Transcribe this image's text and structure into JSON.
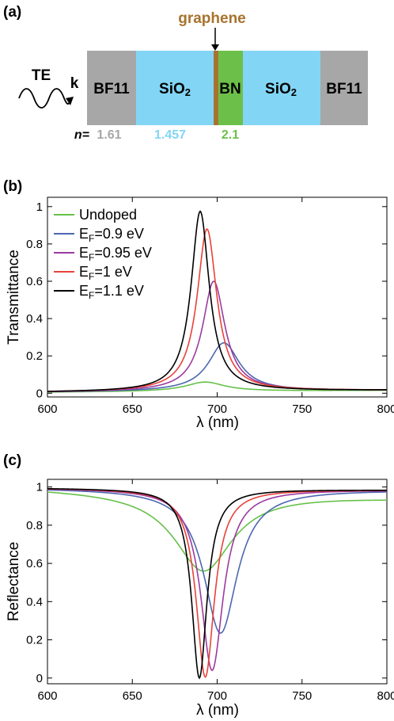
{
  "panel_a": {
    "label": "(a)",
    "graphene_label": "graphene",
    "wave_label": "TE",
    "k_label": "k",
    "n_prefix": "n=",
    "layers": [
      {
        "name": "BF11",
        "n": "1.61",
        "color": "#a6a7a6",
        "n_color": "#a6a7a6"
      },
      {
        "name": "SiO2",
        "n": "1.457",
        "color": "#82d5f5",
        "n_color": "#82d5f5"
      },
      {
        "name": "BN",
        "n": "2.1",
        "color": "#6cc04a",
        "n_color": "#6cc04a"
      },
      {
        "name": "SiO2",
        "n": "",
        "color": "#82d5f5",
        "n_color": "#82d5f5"
      },
      {
        "name": "BF11",
        "n": "",
        "color": "#a6a7a6",
        "n_color": "#a6a7a6"
      }
    ],
    "graphene_color": "#a8722e"
  },
  "chart_data": [
    {
      "panel": "(b)",
      "type": "line",
      "xlabel": "λ (nm)",
      "ylabel": "Transmittance",
      "xlim": [
        600,
        800
      ],
      "ylim": [
        -0.02,
        1.05
      ],
      "xticks": [
        600,
        650,
        700,
        750,
        800
      ],
      "yticks": [
        0,
        0.2,
        0.4,
        0.6,
        0.8,
        1
      ],
      "legend": "top-left",
      "curve_model": "lorentzian",
      "series": [
        {
          "name": "Undoped",
          "color": "#67c04a",
          "center": 693,
          "peak": 0.06,
          "width": 14,
          "baseline": 0.005,
          "baseline_right": 0.015
        },
        {
          "name": "E_F=0.9 eV",
          "color": "#4d67b0",
          "center": 704,
          "peak": 0.27,
          "width": 11,
          "baseline": 0.005,
          "baseline_right": 0.015
        },
        {
          "name": "E_F=0.95 eV",
          "color": "#9b3ba0",
          "center": 698,
          "peak": 0.6,
          "width": 8,
          "baseline": 0.005,
          "baseline_right": 0.015
        },
        {
          "name": "E_F=1 eV",
          "color": "#e8423a",
          "center": 694,
          "peak": 0.88,
          "width": 7,
          "baseline": 0.005,
          "baseline_right": 0.015
        },
        {
          "name": "E_F=1.1 eV",
          "color": "#000000",
          "center": 690,
          "peak": 0.975,
          "width": 6.5,
          "baseline": 0.005,
          "baseline_right": 0.015
        }
      ]
    },
    {
      "panel": "(c)",
      "type": "line",
      "xlabel": "λ (nm)",
      "ylabel": "Reflectance",
      "xlim": [
        600,
        800
      ],
      "ylim": [
        -0.03,
        1.04
      ],
      "xticks": [
        600,
        650,
        700,
        750,
        800
      ],
      "yticks": [
        0,
        0.2,
        0.4,
        0.6,
        0.8,
        1
      ],
      "curve_model": "lorentzian_dip",
      "series": [
        {
          "name": "Undoped",
          "color": "#67c04a",
          "center": 692,
          "min": 0.56,
          "width": 21,
          "base_left": 0.995,
          "base_right": 0.945
        },
        {
          "name": "E_F=0.9 eV",
          "color": "#4d67b0",
          "center": 702,
          "min": 0.235,
          "width": 12,
          "base_left": 0.995,
          "base_right": 0.985
        },
        {
          "name": "E_F=0.95 eV",
          "color": "#9b3ba0",
          "center": 697,
          "min": 0.04,
          "width": 8,
          "base_left": 0.995,
          "base_right": 0.985
        },
        {
          "name": "E_F=1 eV",
          "color": "#e8423a",
          "center": 693,
          "min": 0.005,
          "width": 6.5,
          "base_left": 0.995,
          "base_right": 0.985
        },
        {
          "name": "E_F=1.1 eV",
          "color": "#000000",
          "center": 689.5,
          "min": 0.0,
          "width": 5.5,
          "base_left": 0.995,
          "base_right": 0.985
        }
      ]
    }
  ]
}
